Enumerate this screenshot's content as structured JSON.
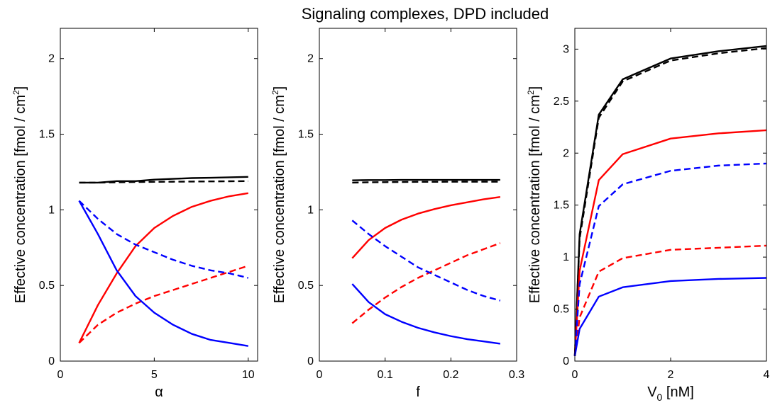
{
  "figure": {
    "title": "Signaling complexes, DPD included"
  },
  "colors": {
    "black": "#000000",
    "red": "#ff0000",
    "blue": "#0000ff"
  },
  "chart_data": [
    {
      "type": "line",
      "xlabel": "α",
      "ylabel_main": "Effective concentration [fmol / cm",
      "ylabel_sup": "2",
      "ylabel_end": "]",
      "xlim": [
        0,
        10.5
      ],
      "ylim": [
        0,
        2.2
      ],
      "xticks": [
        0,
        5,
        10
      ],
      "xtick_labels": [
        "0",
        "5",
        "10"
      ],
      "yticks": [
        0,
        0.5,
        1,
        1.5,
        2
      ],
      "ytick_labels": [
        "0",
        "0.5",
        "1",
        "1.5",
        "2"
      ],
      "series": [
        {
          "color": "black",
          "dash": "solid",
          "x": [
            1,
            2,
            3,
            4,
            5,
            6,
            7,
            8,
            9,
            10
          ],
          "y": [
            1.18,
            1.18,
            1.19,
            1.19,
            1.2,
            1.205,
            1.21,
            1.212,
            1.215,
            1.218
          ]
        },
        {
          "color": "black",
          "dash": "dashed",
          "x": [
            1,
            2,
            3,
            4,
            5,
            6,
            7,
            8,
            9,
            10
          ],
          "y": [
            1.18,
            1.18,
            1.182,
            1.184,
            1.185,
            1.186,
            1.187,
            1.188,
            1.189,
            1.19
          ]
        },
        {
          "color": "red",
          "dash": "solid",
          "x": [
            1,
            2,
            3,
            4,
            5,
            6,
            7,
            8,
            9,
            10
          ],
          "y": [
            0.12,
            0.37,
            0.58,
            0.76,
            0.88,
            0.96,
            1.02,
            1.06,
            1.09,
            1.11
          ]
        },
        {
          "color": "red",
          "dash": "dashed",
          "x": [
            1,
            2,
            3,
            4,
            5,
            6,
            7,
            8,
            9,
            10
          ],
          "y": [
            0.12,
            0.24,
            0.32,
            0.38,
            0.43,
            0.47,
            0.51,
            0.55,
            0.59,
            0.63
          ]
        },
        {
          "color": "blue",
          "dash": "solid",
          "x": [
            1,
            2,
            3,
            4,
            5,
            6,
            7,
            8,
            9,
            10
          ],
          "y": [
            1.06,
            0.84,
            0.6,
            0.43,
            0.32,
            0.24,
            0.18,
            0.14,
            0.12,
            0.1
          ]
        },
        {
          "color": "blue",
          "dash": "dashed",
          "x": [
            1,
            2,
            3,
            4,
            5,
            6,
            7,
            8,
            9,
            10
          ],
          "y": [
            1.06,
            0.94,
            0.84,
            0.77,
            0.72,
            0.67,
            0.63,
            0.6,
            0.58,
            0.55
          ]
        }
      ]
    },
    {
      "type": "line",
      "xlabel": "f",
      "ylabel_main": "Effective concentration [fmol / cm",
      "ylabel_sup": "2",
      "ylabel_end": "]",
      "xlim": [
        0,
        0.3
      ],
      "ylim": [
        0,
        2.2
      ],
      "xticks": [
        0,
        0.1,
        0.2,
        0.3
      ],
      "xtick_labels": [
        "0",
        "0.1",
        "0.2",
        "0.3"
      ],
      "yticks": [
        0,
        0.5,
        1,
        1.5,
        2
      ],
      "ytick_labels": [
        "0",
        "0.5",
        "1",
        "1.5",
        "2"
      ],
      "series": [
        {
          "color": "black",
          "dash": "solid",
          "x": [
            0.05,
            0.075,
            0.1,
            0.125,
            0.15,
            0.175,
            0.2,
            0.225,
            0.25,
            0.275
          ],
          "y": [
            1.195,
            1.197,
            1.197,
            1.198,
            1.198,
            1.198,
            1.198,
            1.198,
            1.198,
            1.198
          ]
        },
        {
          "color": "black",
          "dash": "dashed",
          "x": [
            0.05,
            0.075,
            0.1,
            0.125,
            0.15,
            0.175,
            0.2,
            0.225,
            0.25,
            0.275
          ],
          "y": [
            1.18,
            1.182,
            1.183,
            1.184,
            1.185,
            1.185,
            1.186,
            1.186,
            1.186,
            1.186
          ]
        },
        {
          "color": "red",
          "dash": "solid",
          "x": [
            0.05,
            0.075,
            0.1,
            0.125,
            0.15,
            0.175,
            0.2,
            0.225,
            0.25,
            0.275
          ],
          "y": [
            0.68,
            0.8,
            0.88,
            0.935,
            0.975,
            1.005,
            1.03,
            1.05,
            1.07,
            1.085
          ]
        },
        {
          "color": "red",
          "dash": "dashed",
          "x": [
            0.05,
            0.075,
            0.1,
            0.125,
            0.15,
            0.175,
            0.2,
            0.225,
            0.25,
            0.275
          ],
          "y": [
            0.25,
            0.34,
            0.42,
            0.49,
            0.55,
            0.6,
            0.65,
            0.7,
            0.74,
            0.78
          ]
        },
        {
          "color": "blue",
          "dash": "solid",
          "x": [
            0.05,
            0.075,
            0.1,
            0.125,
            0.15,
            0.175,
            0.2,
            0.225,
            0.25,
            0.275
          ],
          "y": [
            0.51,
            0.39,
            0.31,
            0.26,
            0.22,
            0.19,
            0.165,
            0.145,
            0.13,
            0.115
          ]
        },
        {
          "color": "blue",
          "dash": "dashed",
          "x": [
            0.05,
            0.075,
            0.1,
            0.125,
            0.15,
            0.175,
            0.2,
            0.225,
            0.25,
            0.275
          ],
          "y": [
            0.93,
            0.84,
            0.76,
            0.69,
            0.62,
            0.57,
            0.52,
            0.47,
            0.43,
            0.4
          ]
        }
      ]
    },
    {
      "type": "line",
      "xlabel_main": "V",
      "xlabel_sub": "0",
      "xlabel_end": " [nM]",
      "ylabel_main": "Effective concentration [fmol / cm",
      "ylabel_sup": "2",
      "ylabel_end": "]",
      "xlim": [
        0,
        4
      ],
      "ylim": [
        0,
        3.2
      ],
      "xticks": [
        0,
        2,
        4
      ],
      "xtick_labels": [
        "0",
        "2",
        "4"
      ],
      "yticks": [
        0,
        0.5,
        1,
        1.5,
        2,
        2.5,
        3
      ],
      "ytick_labels": [
        "0",
        "0.5",
        "1",
        "1.5",
        "2",
        "2.5",
        "3"
      ],
      "series": [
        {
          "color": "black",
          "dash": "solid",
          "x": [
            0,
            0.1,
            0.5,
            1,
            2,
            3,
            4
          ],
          "y": [
            0.05,
            1.22,
            2.37,
            2.71,
            2.91,
            2.98,
            3.03
          ]
        },
        {
          "color": "black",
          "dash": "dashed",
          "x": [
            0,
            0.1,
            0.5,
            1,
            2,
            3,
            4
          ],
          "y": [
            0.05,
            1.18,
            2.34,
            2.69,
            2.89,
            2.96,
            3.01
          ]
        },
        {
          "color": "red",
          "dash": "solid",
          "x": [
            0,
            0.1,
            0.5,
            1,
            2,
            3,
            4
          ],
          "y": [
            0.05,
            0.87,
            1.74,
            1.99,
            2.14,
            2.19,
            2.22
          ]
        },
        {
          "color": "red",
          "dash": "dashed",
          "x": [
            0,
            0.1,
            0.5,
            1,
            2,
            3,
            4
          ],
          "y": [
            0.05,
            0.42,
            0.86,
            0.99,
            1.07,
            1.09,
            1.11
          ]
        },
        {
          "color": "blue",
          "dash": "solid",
          "x": [
            0,
            0.1,
            0.5,
            1,
            2,
            3,
            4
          ],
          "y": [
            0.05,
            0.31,
            0.62,
            0.71,
            0.77,
            0.79,
            0.8
          ]
        },
        {
          "color": "blue",
          "dash": "dashed",
          "x": [
            0,
            0.1,
            0.5,
            1,
            2,
            3,
            4
          ],
          "y": [
            0.05,
            0.74,
            1.49,
            1.7,
            1.83,
            1.88,
            1.9
          ]
        }
      ]
    }
  ]
}
